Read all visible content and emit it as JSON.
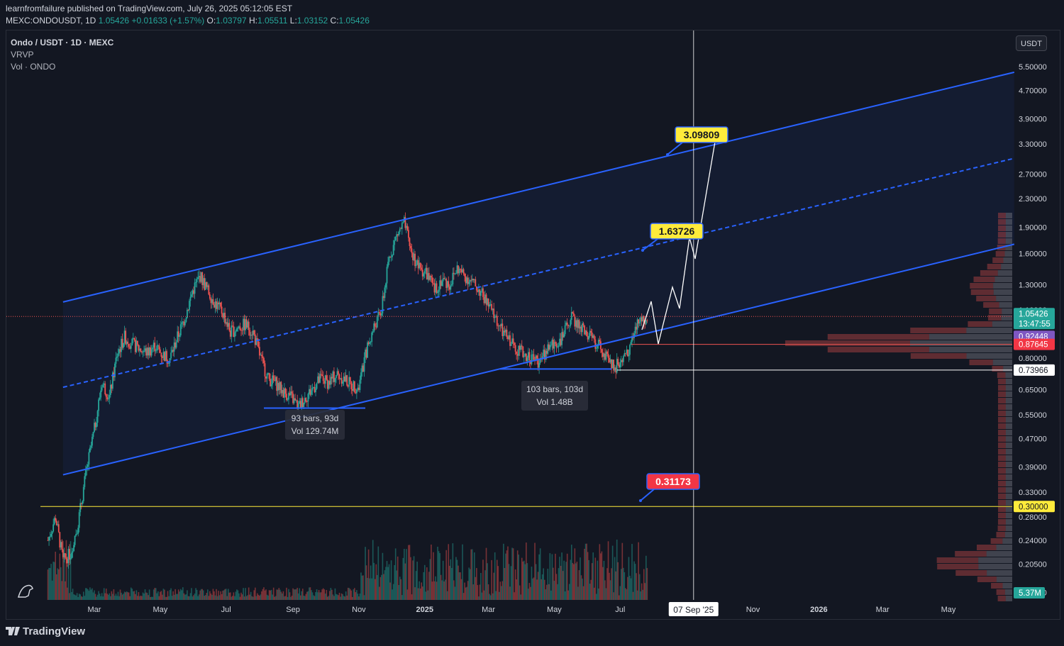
{
  "header": {
    "publisher_line": "learnfromfailure published on TradingView.com, July 26, 2025 05:12:05 EST",
    "symbol_line": "MEXC:ONDOUSDT, 1D",
    "last": "1.05426",
    "change": "+0.01633 (+1.57%)",
    "o_label": "O:",
    "o": "1.03797",
    "h_label": "H:",
    "h": "1.05511",
    "l_label": "L:",
    "l": "1.03152",
    "c_label": "C:",
    "c": "1.05426"
  },
  "legend": {
    "title": "Ondo / USDT · 1D · MEXC",
    "indicator1": "VRVP",
    "indicator2": "Vol · ONDO"
  },
  "currency_button": "USDT",
  "footer": {
    "brand": "TradingView"
  },
  "colors": {
    "background": "#131722",
    "up": "#26a69a",
    "down": "#ef5350",
    "channel": "#2962ff",
    "target_label": "#ffeb3b",
    "stop_label": "#f23645",
    "support": "#ffeb3b"
  },
  "chart_data": {
    "type": "candlestick",
    "scale": "log",
    "price_axis_ticks": [
      "5.50000",
      "4.70000",
      "3.90000",
      "3.30000",
      "2.70000",
      "2.30000",
      "1.90000",
      "1.60000",
      "1.30000",
      "1.10000",
      "0.80000",
      "0.65000",
      "0.55000",
      "0.47000",
      "0.39000",
      "0.33000",
      "0.28000",
      "0.24000",
      "0.20500",
      "0.17000"
    ],
    "time_axis_ticks": [
      "Mar",
      "May",
      "Jul",
      "Sep",
      "Nov",
      "2025",
      "Mar",
      "May",
      "Jul",
      "Nov",
      "2026",
      "Mar",
      "May"
    ],
    "crosshair_date": "07 Sep '25",
    "price_badges": [
      {
        "value": "1.05426",
        "sub": "13:47:55",
        "kind": "last"
      },
      {
        "value": "0.92448",
        "kind": "purple"
      },
      {
        "value": "0.87645",
        "kind": "red"
      },
      {
        "value": "0.73966",
        "kind": "white"
      },
      {
        "value": "0.30000",
        "kind": "yellow"
      },
      {
        "value": "5.37M",
        "kind": "volume"
      }
    ],
    "annotations": [
      {
        "text": "3.09809",
        "kind": "target"
      },
      {
        "text": "1.63726",
        "kind": "target"
      },
      {
        "text": "0.31173",
        "kind": "stop"
      }
    ],
    "measure_boxes": [
      {
        "line1": "93 bars, 93d",
        "line2": "Vol 129.74M"
      },
      {
        "line1": "103 bars, 103d",
        "line2": "Vol 1.48B"
      }
    ],
    "support_level": 0.3,
    "channel": {
      "upper": [
        [
          "2024-02-01",
          1.16
        ],
        [
          "2026-07-01",
          5.3
        ]
      ],
      "lower": [
        [
          "2024-02-01",
          0.37
        ],
        [
          "2026-07-01",
          1.7
        ]
      ],
      "mid": [
        [
          "2024-02-01",
          0.66
        ],
        [
          "2026-07-01",
          3.0
        ]
      ]
    },
    "projection": [
      [
        "2025-07-26",
        1.05
      ],
      [
        "2025-08-10",
        1.28
      ],
      [
        "2025-08-28",
        1.85
      ],
      [
        "2025-09-15",
        3.2
      ]
    ],
    "price_path": [
      [
        "2024-01-18",
        0.24
      ],
      [
        "2024-01-25",
        0.28
      ],
      [
        "2024-02-01",
        0.21
      ],
      [
        "2024-02-08",
        0.22
      ],
      [
        "2024-02-15",
        0.27
      ],
      [
        "2024-02-22",
        0.37
      ],
      [
        "2024-03-01",
        0.5
      ],
      [
        "2024-03-08",
        0.68
      ],
      [
        "2024-03-15",
        0.62
      ],
      [
        "2024-03-22",
        0.82
      ],
      [
        "2024-03-29",
        0.92
      ],
      [
        "2024-04-05",
        0.88
      ],
      [
        "2024-04-12",
        0.85
      ],
      [
        "2024-04-19",
        0.83
      ],
      [
        "2024-04-26",
        0.87
      ],
      [
        "2024-05-03",
        0.82
      ],
      [
        "2024-05-10",
        0.8
      ],
      [
        "2024-05-17",
        0.92
      ],
      [
        "2024-05-24",
        1.05
      ],
      [
        "2024-05-31",
        1.25
      ],
      [
        "2024-06-07",
        1.38
      ],
      [
        "2024-06-14",
        1.25
      ],
      [
        "2024-06-21",
        1.15
      ],
      [
        "2024-06-28",
        1.08
      ],
      [
        "2024-07-05",
        0.95
      ],
      [
        "2024-07-12",
        0.98
      ],
      [
        "2024-07-19",
        1.0
      ],
      [
        "2024-07-26",
        0.95
      ],
      [
        "2024-08-02",
        0.8
      ],
      [
        "2024-08-09",
        0.7
      ],
      [
        "2024-08-16",
        0.68
      ],
      [
        "2024-08-23",
        0.64
      ],
      [
        "2024-08-30",
        0.62
      ],
      [
        "2024-09-06",
        0.58
      ],
      [
        "2024-09-13",
        0.62
      ],
      [
        "2024-09-20",
        0.66
      ],
      [
        "2024-09-27",
        0.7
      ],
      [
        "2024-10-04",
        0.68
      ],
      [
        "2024-10-11",
        0.72
      ],
      [
        "2024-10-18",
        0.7
      ],
      [
        "2024-10-25",
        0.67
      ],
      [
        "2024-11-01",
        0.66
      ],
      [
        "2024-11-08",
        0.84
      ],
      [
        "2024-11-15",
        0.98
      ],
      [
        "2024-11-22",
        1.1
      ],
      [
        "2024-11-29",
        1.55
      ],
      [
        "2024-12-06",
        1.8
      ],
      [
        "2024-12-13",
        1.95
      ],
      [
        "2024-12-20",
        1.6
      ],
      [
        "2024-12-27",
        1.45
      ],
      [
        "2025-01-03",
        1.4
      ],
      [
        "2025-01-10",
        1.25
      ],
      [
        "2025-01-17",
        1.35
      ],
      [
        "2025-01-24",
        1.3
      ],
      [
        "2025-01-31",
        1.45
      ],
      [
        "2025-02-07",
        1.38
      ],
      [
        "2025-02-14",
        1.32
      ],
      [
        "2025-02-21",
        1.25
      ],
      [
        "2025-02-28",
        1.15
      ],
      [
        "2025-03-07",
        1.05
      ],
      [
        "2025-03-14",
        0.95
      ],
      [
        "2025-03-21",
        0.9
      ],
      [
        "2025-03-28",
        0.85
      ],
      [
        "2025-04-04",
        0.82
      ],
      [
        "2025-04-11",
        0.8
      ],
      [
        "2025-04-18",
        0.78
      ],
      [
        "2025-04-25",
        0.86
      ],
      [
        "2025-05-02",
        0.88
      ],
      [
        "2025-05-09",
        0.92
      ],
      [
        "2025-05-16",
        1.05
      ],
      [
        "2025-05-23",
        1.0
      ],
      [
        "2025-05-30",
        0.95
      ],
      [
        "2025-06-06",
        0.9
      ],
      [
        "2025-06-13",
        0.86
      ],
      [
        "2025-06-20",
        0.78
      ],
      [
        "2025-06-27",
        0.76
      ],
      [
        "2025-07-04",
        0.8
      ],
      [
        "2025-07-11",
        0.88
      ],
      [
        "2025-07-18",
        1.02
      ],
      [
        "2025-07-26",
        1.05
      ]
    ]
  }
}
